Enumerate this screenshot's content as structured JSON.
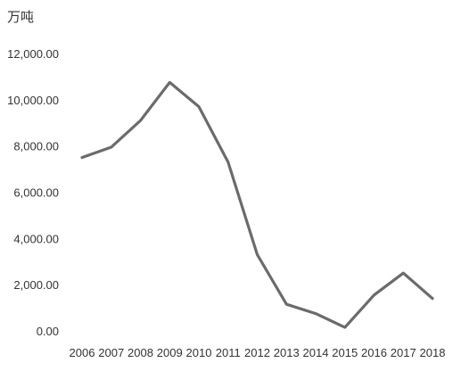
{
  "chart_data": {
    "type": "line",
    "unit_label": "万吨",
    "x": [
      "2006",
      "2007",
      "2008",
      "2009",
      "2010",
      "2011",
      "2012",
      "2013",
      "2014",
      "2015",
      "2016",
      "2017",
      "2018"
    ],
    "series": [
      {
        "values": [
          7500,
          7950,
          9100,
          10750,
          9700,
          7300,
          3300,
          1150,
          750,
          150,
          1550,
          2500,
          1400
        ],
        "color": "#6b6b6b"
      }
    ],
    "y_ticks": [
      "0.00",
      "2,000.00",
      "4,000.00",
      "6,000.00",
      "8,000.00",
      "10,000.00",
      "12,000.00"
    ],
    "ylim": [
      0,
      12000
    ],
    "grid": false,
    "legend": "none"
  }
}
